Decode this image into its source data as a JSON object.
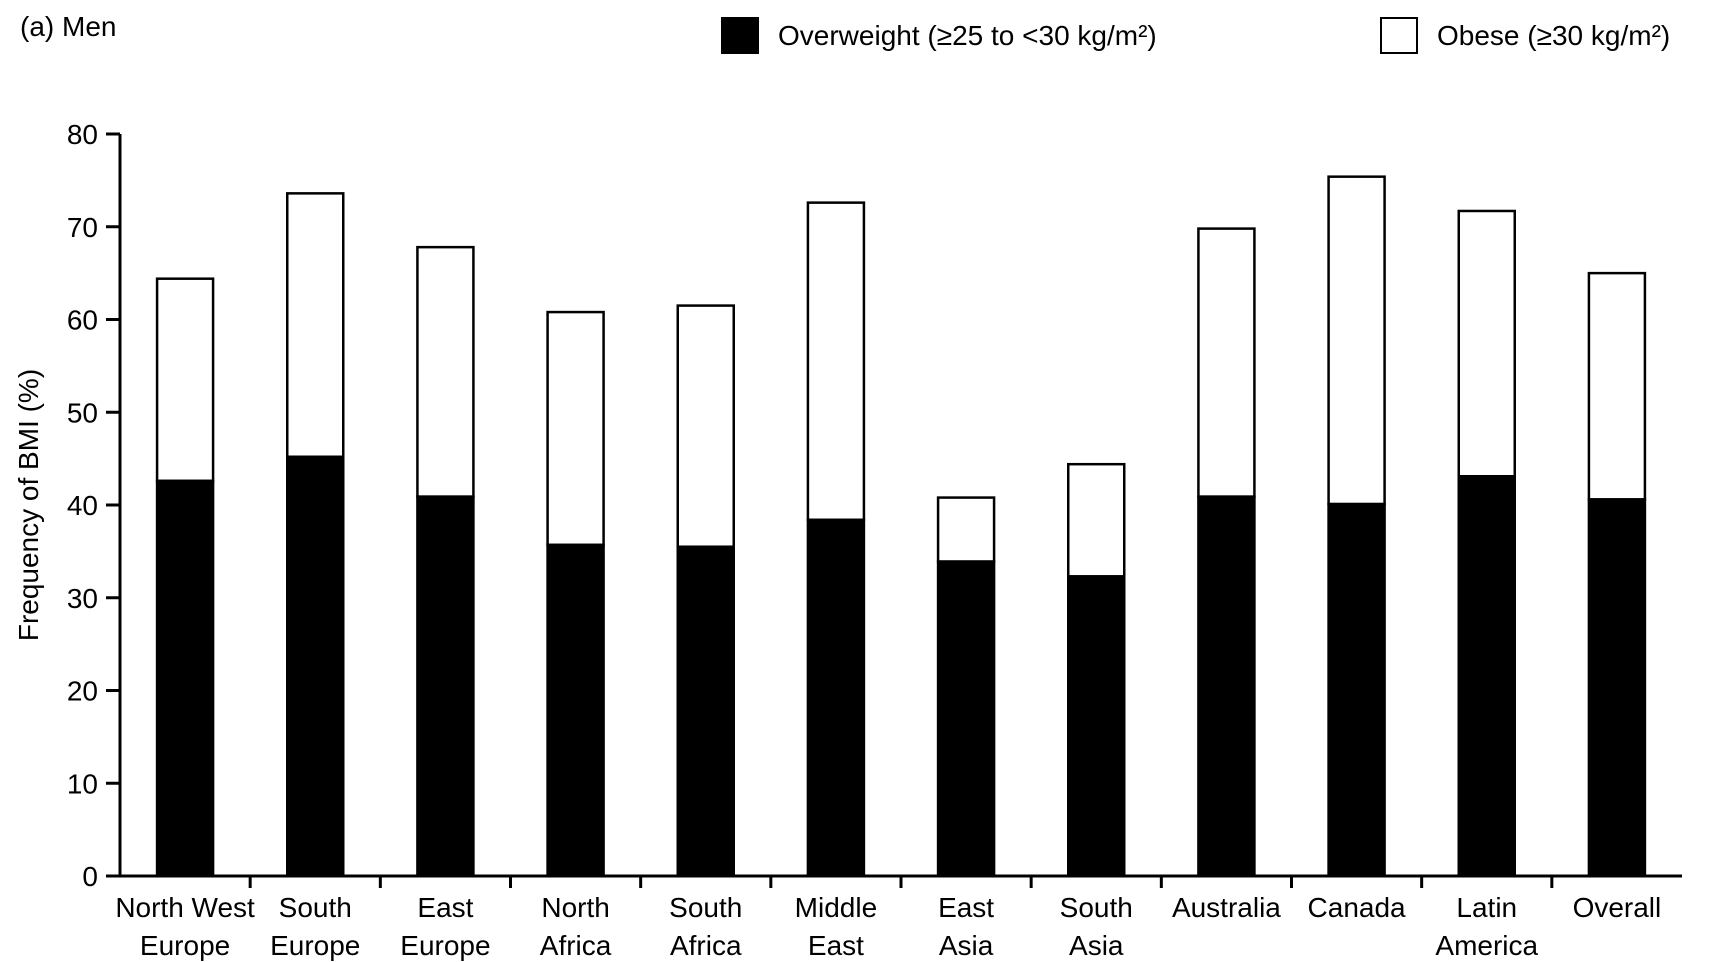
{
  "chart_data": {
    "type": "bar",
    "stacked": true,
    "title": "(a) Men",
    "ylabel": "Frequency of BMI (%)",
    "xlabel": "",
    "ylim": [
      0,
      80
    ],
    "yticks": [
      0,
      10,
      20,
      30,
      40,
      50,
      60,
      70,
      80
    ],
    "grid": false,
    "legend_position": "top",
    "categories": [
      [
        "North West",
        "Europe"
      ],
      [
        "South",
        "Europe"
      ],
      [
        "East",
        "Europe"
      ],
      [
        "North",
        "Africa"
      ],
      [
        "South",
        "Africa"
      ],
      [
        "Middle",
        "East"
      ],
      [
        "East",
        "Asia"
      ],
      [
        "South",
        "Asia"
      ],
      [
        "Australia"
      ],
      [
        "Canada"
      ],
      [
        "Latin",
        "America"
      ],
      [
        "Overall"
      ]
    ],
    "series": [
      {
        "name": "Overweight (≥25 to <30 kg/m²)",
        "color": "#000000",
        "values": [
          42.6,
          45.2,
          40.9,
          35.7,
          35.5,
          38.4,
          33.9,
          32.3,
          40.9,
          40.1,
          43.1,
          40.6
        ]
      },
      {
        "name": "Obese (≥30 kg/m²)",
        "color": "#ffffff",
        "values": [
          21.8,
          28.4,
          26.9,
          25.1,
          26.0,
          34.2,
          6.9,
          12.1,
          28.9,
          35.3,
          28.6,
          24.4
        ]
      }
    ]
  }
}
